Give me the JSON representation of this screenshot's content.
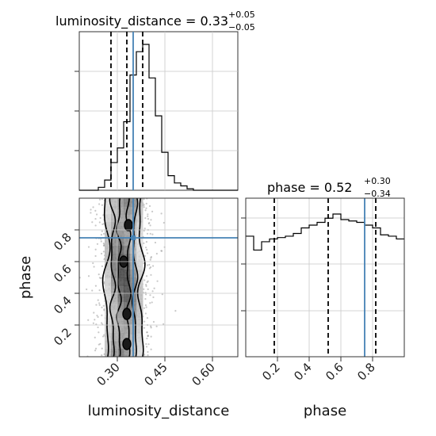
{
  "chart_data": {
    "type": "corner",
    "parameters": [
      "luminosity_distance",
      "phase"
    ],
    "truths": {
      "luminosity_distance": 0.35,
      "phase": 0.75
    },
    "truth_color": "#4682b4",
    "titles": {
      "luminosity_distance": {
        "text": "luminosity_distance = 0.33",
        "plus": "+0.05",
        "minus": "−0.05"
      },
      "phase": {
        "text": "phase = 0.52",
        "plus": "+0.30",
        "minus": "−0.34"
      }
    },
    "quantiles": {
      "luminosity_distance": [
        0.28,
        0.33,
        0.38
      ],
      "phase": [
        0.18,
        0.52,
        0.82
      ]
    },
    "axes": {
      "luminosity_distance": {
        "label": "luminosity_distance",
        "range": [
          0.18,
          0.68
        ],
        "ticks": [
          0.3,
          0.45,
          0.6
        ],
        "tick_labels": [
          "0.30",
          "0.45",
          "0.60"
        ]
      },
      "phase": {
        "label": "phase",
        "range": [
          0.0,
          1.0
        ],
        "ticks": [
          0.2,
          0.4,
          0.6,
          0.8
        ],
        "tick_labels": [
          "0.2",
          "0.4",
          "0.6",
          "0.8"
        ]
      }
    },
    "histograms": {
      "luminosity_distance": {
        "edges": [
          0.18,
          0.2,
          0.22,
          0.24,
          0.26,
          0.28,
          0.3,
          0.32,
          0.34,
          0.36,
          0.38,
          0.4,
          0.42,
          0.44,
          0.46,
          0.48,
          0.5,
          0.52,
          0.54,
          0.56,
          0.58,
          0.6,
          0.62,
          0.64,
          0.66,
          0.68
        ],
        "counts": [
          0,
          0,
          0,
          0.02,
          0.07,
          0.19,
          0.29,
          0.47,
          0.79,
          0.95,
          1.0,
          0.77,
          0.51,
          0.26,
          0.1,
          0.05,
          0.03,
          0.01,
          0,
          0,
          0,
          0,
          0,
          0,
          0
        ]
      },
      "phase": {
        "edges": [
          0.0,
          0.05,
          0.1,
          0.15,
          0.2,
          0.25,
          0.3,
          0.35,
          0.4,
          0.45,
          0.5,
          0.55,
          0.6,
          0.65,
          0.7,
          0.75,
          0.8,
          0.85,
          0.9,
          0.95,
          1.0
        ],
        "counts": [
          0.87,
          0.77,
          0.83,
          0.85,
          0.86,
          0.87,
          0.89,
          0.93,
          0.95,
          0.97,
          1.0,
          1.03,
          0.99,
          0.98,
          0.97,
          0.95,
          0.93,
          0.88,
          0.87,
          0.85
        ]
      }
    },
    "density_2d": {
      "x_range": [
        0.18,
        0.68
      ],
      "y_range": [
        0.0,
        1.0
      ],
      "grid": {
        "nx": 25,
        "ny": 20
      },
      "centroid": [
        0.32,
        0.52
      ],
      "points_count": 1200,
      "contours": [
        {
          "level": "outer",
          "path": [
            [
              0.26,
              0.02
            ],
            [
              0.27,
              0.15
            ],
            [
              0.26,
              0.35
            ],
            [
              0.27,
              0.5
            ],
            [
              0.26,
              0.7
            ],
            [
              0.27,
              0.85
            ],
            [
              0.26,
              1.0
            ]
          ]
        },
        {
          "level": "inner",
          "path": [
            [
              0.3,
              0.05
            ],
            [
              0.31,
              0.3
            ],
            [
              0.3,
              0.5
            ],
            [
              0.31,
              0.7
            ],
            [
              0.3,
              0.95
            ]
          ]
        }
      ]
    },
    "panels": [
      "hist-luminosity_distance",
      "scatter-luminosity_distance-phase",
      "hist-phase"
    ],
    "grid": true
  }
}
